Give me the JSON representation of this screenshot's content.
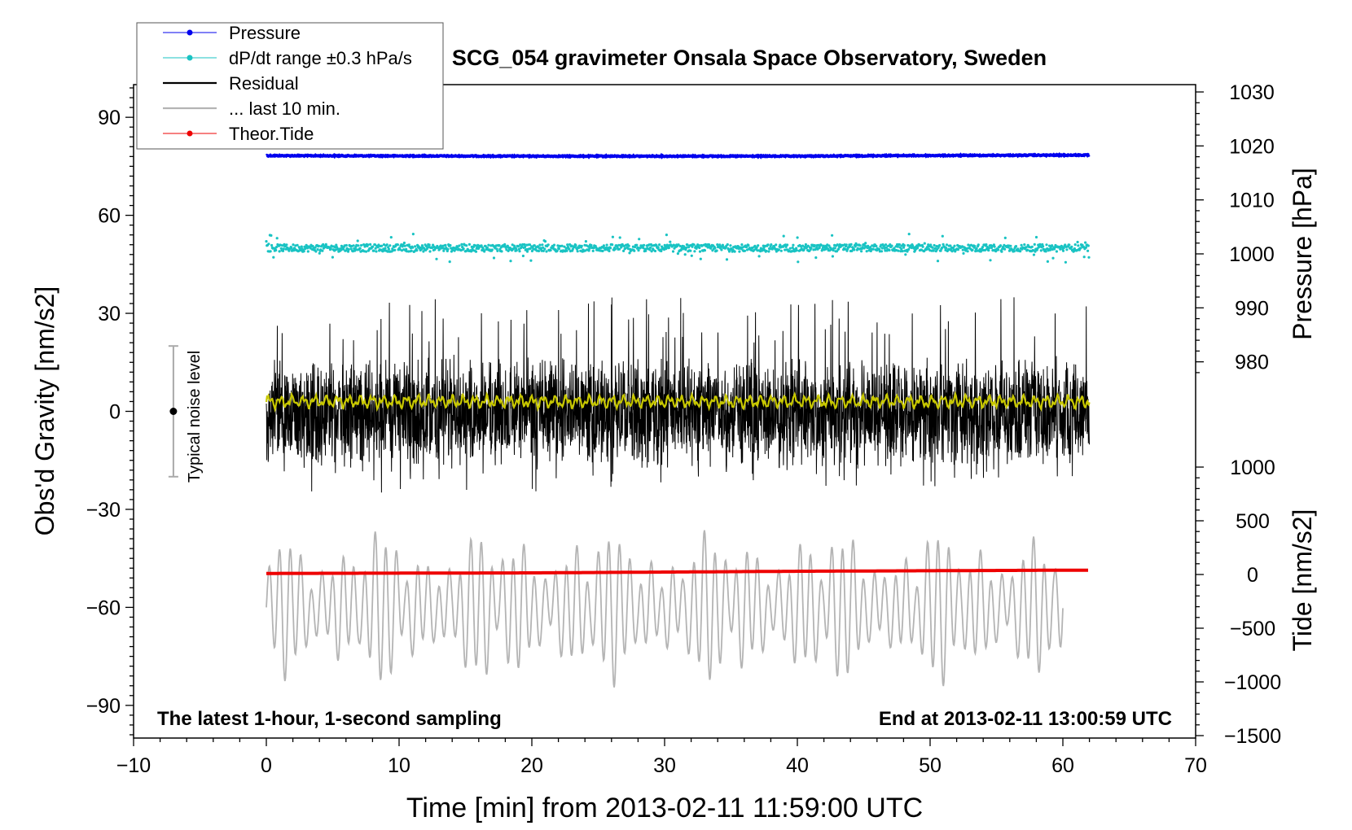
{
  "chart_data": {
    "type": "line",
    "title": "SCG_054 gravimeter Onsala Space Observatory, Sweden",
    "xlabel": "Time [min] from 2013-02-11 11:59:00 UTC",
    "ylabel_left": "Obs'd Gravity [nm/s2]",
    "ylabel_pressure": "Pressure [hPa]",
    "ylabel_tide": "Tide [nm/s2]",
    "xlim": [
      -10,
      70
    ],
    "ylim_left": [
      -100,
      100
    ],
    "ylim_pressure": [
      970,
      1030
    ],
    "ylim_tide": [
      -1500,
      1500
    ],
    "x_ticks": [
      "−10",
      "0",
      "10",
      "20",
      "30",
      "40",
      "50",
      "60",
      "70"
    ],
    "y_ticks_left": [
      "−90",
      "−60",
      "−30",
      "0",
      "30",
      "60",
      "90"
    ],
    "y_ticks_pressure": [
      "980",
      "990",
      "1000",
      "1010",
      "1020",
      "1030"
    ],
    "y_ticks_tide": [
      "−1500",
      "−1000",
      "−500",
      "0",
      "500",
      "1000"
    ],
    "annotations": {
      "bottom_left": "The latest 1-hour, 1-second sampling",
      "bottom_right": "End at 2013-02-11 13:00:59 UTC",
      "noise_label": "Typical noise level"
    },
    "noise_bar": {
      "x": -7,
      "center": 0,
      "low": -20,
      "high": 20
    },
    "legend": [
      {
        "name": "Pressure",
        "color": "#0000ee"
      },
      {
        "name": "dP/dt range ±0.3 hPa/s",
        "color": "#19c3c3"
      },
      {
        "name": "Residual",
        "color": "#000000"
      },
      {
        "name": "... last 10 min.",
        "color": "#b4b4b4"
      },
      {
        "name": "Theor.Tide",
        "color": "#ee0000"
      }
    ],
    "series": [
      {
        "name": "Pressure",
        "axis": "pressure",
        "color": "#0000ee",
        "x": [
          0,
          20,
          40,
          47,
          62
        ],
        "y": [
          1018.2,
          1018.1,
          1018.1,
          1018.2,
          1018.3
        ]
      },
      {
        "name": "dP/dt range ±0.3 hPa/s",
        "axis": "left",
        "color": "#19c3c3",
        "x": [
          0,
          62
        ],
        "y": [
          50,
          50
        ],
        "scatter_spread": 4
      },
      {
        "name": "Residual",
        "axis": "left",
        "color": "#000000",
        "x": [
          0,
          62
        ],
        "y": [
          0,
          0
        ],
        "envelope": [
          -25,
          35
        ]
      },
      {
        "name": "Residual (smoothed)",
        "axis": "left",
        "color": "#c8c800",
        "x": [
          0,
          62
        ],
        "y": [
          3,
          3
        ]
      },
      {
        "name": "... last 10 min.",
        "axis": "left",
        "color": "#b4b4b4",
        "x": [
          0,
          60
        ],
        "y": [
          -60,
          -60
        ],
        "envelope": [
          -91,
          -30
        ]
      },
      {
        "name": "Theor.Tide",
        "axis": "tide",
        "color": "#ee0000",
        "x": [
          0,
          20,
          40,
          60,
          62
        ],
        "y": [
          10,
          15,
          30,
          40,
          40
        ]
      }
    ]
  }
}
